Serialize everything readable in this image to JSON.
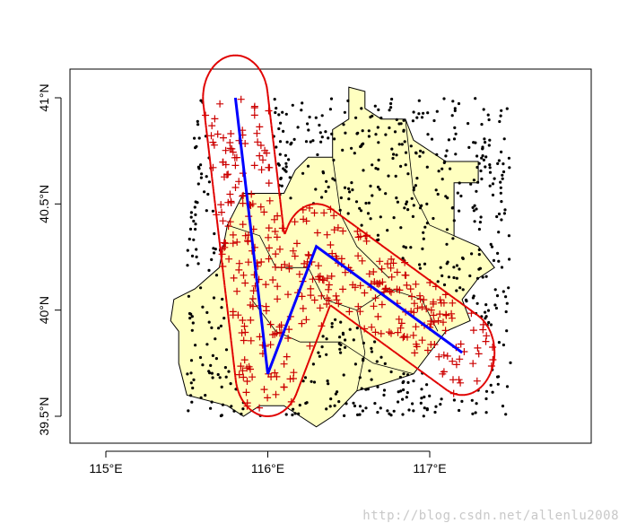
{
  "chart_data": {
    "type": "scatter",
    "title": "",
    "xlabel": "",
    "ylabel": "",
    "xlim": [
      114.8,
      118.0
    ],
    "ylim": [
      39.38,
      41.15
    ],
    "x_ticks": [
      {
        "value": 115,
        "label": "115°E"
      },
      {
        "value": 116,
        "label": "116°E"
      },
      {
        "value": 117,
        "label": "117°E"
      }
    ],
    "y_ticks": [
      {
        "value": 39.5,
        "label": "39.5°N"
      },
      {
        "value": 40,
        "label": "40°N"
      },
      {
        "value": 40.5,
        "label": "40.5°N"
      },
      {
        "value": 41,
        "label": "41°N"
      }
    ],
    "grid": false,
    "colors": {
      "region_fill": "#ffffc0",
      "region_border": "#000000",
      "points": "#000000",
      "buffer_outline": "#e00000",
      "points_in_buffer": "#cc0000",
      "line": "#0000ff"
    },
    "polyline": {
      "coordinates": [
        [
          115.8,
          41.0
        ],
        [
          116.0,
          39.7
        ],
        [
          116.3,
          40.3
        ],
        [
          117.2,
          39.8
        ]
      ]
    },
    "buffer": {
      "shape": "rounded corridor around the polyline",
      "half_width_deg": 0.2
    },
    "points": {
      "count": 1000,
      "x_range": [
        115.5,
        117.5
      ],
      "y_range": [
        39.5,
        41.0
      ],
      "marker_outside": "dot",
      "marker_inside_buffer": "red plus"
    },
    "region": {
      "name": "",
      "outline": [
        [
          116.1,
          40.55
        ],
        [
          116.17,
          40.66
        ],
        [
          116.25,
          40.72
        ],
        [
          116.4,
          40.72
        ],
        [
          116.4,
          40.85
        ],
        [
          116.5,
          40.9
        ],
        [
          116.5,
          41.05
        ],
        [
          116.6,
          41.03
        ],
        [
          116.6,
          40.95
        ],
        [
          116.7,
          40.9
        ],
        [
          116.85,
          40.9
        ],
        [
          116.9,
          40.8
        ],
        [
          117.1,
          40.7
        ],
        [
          117.3,
          40.7
        ],
        [
          117.3,
          40.6
        ],
        [
          117.15,
          40.6
        ],
        [
          117.15,
          40.35
        ],
        [
          117.3,
          40.3
        ],
        [
          117.4,
          40.2
        ],
        [
          117.3,
          40.15
        ],
        [
          117.2,
          40.05
        ],
        [
          117.25,
          39.95
        ],
        [
          117.1,
          39.9
        ],
        [
          117.0,
          39.8
        ],
        [
          116.9,
          39.7
        ],
        [
          116.7,
          39.65
        ],
        [
          116.55,
          39.62
        ],
        [
          116.4,
          39.5
        ],
        [
          116.3,
          39.45
        ],
        [
          116.2,
          39.5
        ],
        [
          116.1,
          39.55
        ],
        [
          115.95,
          39.55
        ],
        [
          115.85,
          39.5
        ],
        [
          115.75,
          39.55
        ],
        [
          115.5,
          39.6
        ],
        [
          115.45,
          39.75
        ],
        [
          115.45,
          39.9
        ],
        [
          115.4,
          39.95
        ],
        [
          115.42,
          40.05
        ],
        [
          115.55,
          40.1
        ],
        [
          115.7,
          40.2
        ],
        [
          115.75,
          40.4
        ],
        [
          115.85,
          40.55
        ],
        [
          116.0,
          40.55
        ]
      ]
    }
  }
}
